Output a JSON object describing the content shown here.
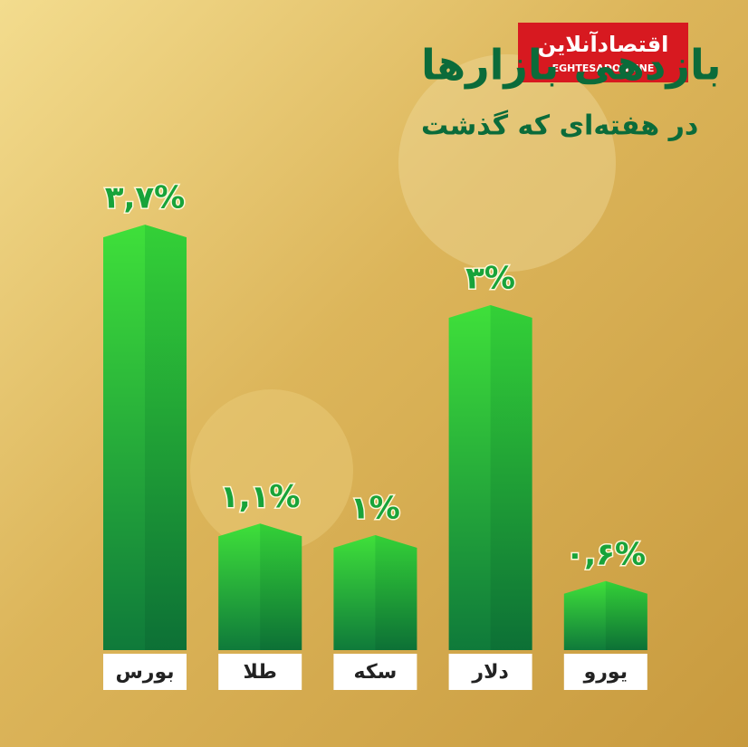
{
  "chart_data": {
    "type": "bar",
    "title": "بازدهی بازارها",
    "subtitle": "در هفته‌ای که گذشت",
    "categories": [
      "بورس",
      "طلا",
      "سکه",
      "دلار",
      "یورو"
    ],
    "values": [
      3.7,
      1.1,
      1,
      3,
      0.6
    ],
    "value_labels": [
      "۳,۷%",
      "۱,۱%",
      "۱%",
      "۳%",
      "۰,۶%"
    ]
  },
  "logo": {
    "name": "اقتصادآنلاین",
    "latin": "EGHTESADONLINE"
  }
}
